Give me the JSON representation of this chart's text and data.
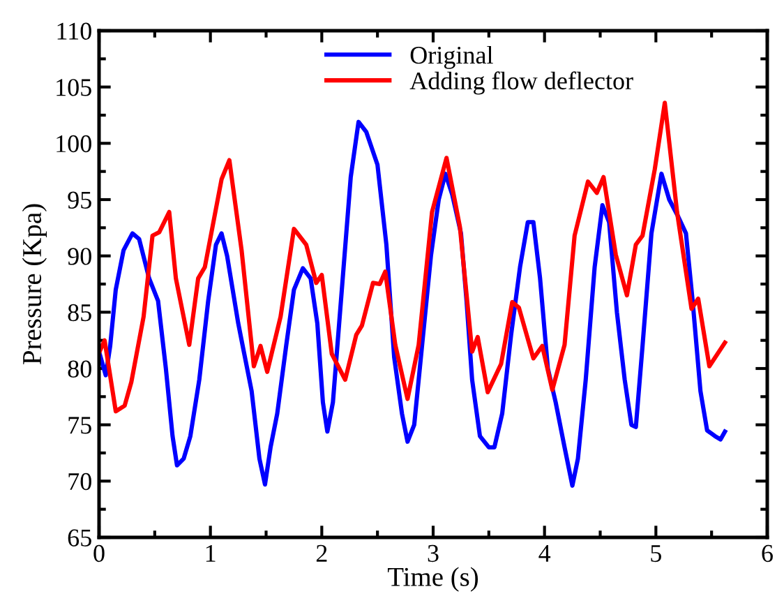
{
  "chart_data": {
    "type": "line",
    "xlabel": "Time (s)",
    "ylabel": "Pressure (Kpa)",
    "xlim": [
      0,
      6
    ],
    "xticks": [
      0,
      1,
      2,
      3,
      4,
      5,
      6
    ],
    "ylim": [
      65,
      110
    ],
    "yticks": [
      65,
      70,
      75,
      80,
      85,
      90,
      95,
      100,
      105,
      110
    ],
    "grid": false,
    "legend": "top",
    "marker": "none",
    "line_style": "solid",
    "series": [
      {
        "name": "Original",
        "color": "#0000ff",
        "x": [
          0,
          0.06,
          0.1,
          0.15,
          0.22,
          0.3,
          0.36,
          0.45,
          0.53,
          0.6,
          0.66,
          0.7,
          0.76,
          0.82,
          0.9,
          0.98,
          1.05,
          1.1,
          1.15,
          1.25,
          1.3,
          1.37,
          1.44,
          1.49,
          1.54,
          1.6,
          1.68,
          1.75,
          1.83,
          1.9,
          1.96,
          2.01,
          2.05,
          2.1,
          2.18,
          2.26,
          2.33,
          2.4,
          2.5,
          2.58,
          2.65,
          2.72,
          2.77,
          2.83,
          2.9,
          2.98,
          3.05,
          3.11,
          3.17,
          3.25,
          3.3,
          3.35,
          3.42,
          3.5,
          3.55,
          3.62,
          3.7,
          3.78,
          3.85,
          3.9,
          3.96,
          4.03,
          4.1,
          4.18,
          4.25,
          4.3,
          4.37,
          4.45,
          4.52,
          4.58,
          4.65,
          4.72,
          4.78,
          4.82,
          4.88,
          4.96,
          5.05,
          5.12,
          5.2,
          5.27,
          5.33,
          5.4,
          5.46,
          5.53,
          5.58,
          5.62
        ],
        "values": [
          81.5,
          79.4,
          82,
          87,
          90.5,
          92,
          91.5,
          88,
          86,
          80,
          74,
          71.4,
          72,
          74,
          79,
          86,
          91,
          92,
          90,
          84,
          81.5,
          78,
          72,
          69.7,
          73,
          76,
          82,
          87,
          88.9,
          88,
          84,
          77,
          74.4,
          77,
          87,
          97,
          101.9,
          101,
          98.1,
          91,
          81,
          76,
          73.5,
          75,
          82,
          90,
          95,
          97.3,
          95.5,
          92,
          86,
          79,
          74,
          73,
          73,
          76,
          83,
          89,
          93,
          93,
          88,
          80,
          77,
          73,
          69.6,
          72,
          79,
          89,
          94.5,
          93,
          85,
          79,
          75,
          74.8,
          82,
          92,
          97.3,
          95,
          93.5,
          92,
          86,
          78,
          74.5,
          74,
          73.7,
          74.4
        ]
      },
      {
        "name": "Adding flow deflector",
        "color": "#ff0000",
        "x": [
          0,
          0.05,
          0.15,
          0.23,
          0.29,
          0.4,
          0.48,
          0.54,
          0.63,
          0.69,
          0.81,
          0.89,
          0.95,
          1.1,
          1.17,
          1.28,
          1.39,
          1.45,
          1.51,
          1.63,
          1.75,
          1.86,
          1.95,
          2.0,
          2.09,
          2.21,
          2.31,
          2.36,
          2.46,
          2.52,
          2.57,
          2.66,
          2.77,
          2.87,
          2.99,
          3.12,
          3.24,
          3.35,
          3.4,
          3.49,
          3.61,
          3.71,
          3.77,
          3.9,
          3.98,
          4.07,
          4.18,
          4.27,
          4.39,
          4.47,
          4.53,
          4.64,
          4.74,
          4.82,
          4.88,
          4.99,
          5.08,
          5.19,
          5.32,
          5.38,
          5.48,
          5.62
        ],
        "values": [
          81.4,
          82.5,
          76.2,
          76.7,
          78.8,
          84.6,
          91.8,
          92.1,
          93.9,
          88,
          82.1,
          88,
          89,
          96.8,
          98.5,
          90.5,
          80.2,
          82,
          79.7,
          84.6,
          92.4,
          91,
          87.6,
          88.3,
          81.3,
          79,
          83,
          83.8,
          87.6,
          87.5,
          88.6,
          82.1,
          77.3,
          82.1,
          93.9,
          98.7,
          92.6,
          81.5,
          82.8,
          77.9,
          80.4,
          85.9,
          85.4,
          80.9,
          82,
          78.1,
          82.1,
          91.8,
          96.6,
          95.6,
          97,
          90.1,
          86.5,
          91,
          91.8,
          97.7,
          103.6,
          93.9,
          85.3,
          86.2,
          80.2,
          82.3
        ]
      }
    ]
  }
}
